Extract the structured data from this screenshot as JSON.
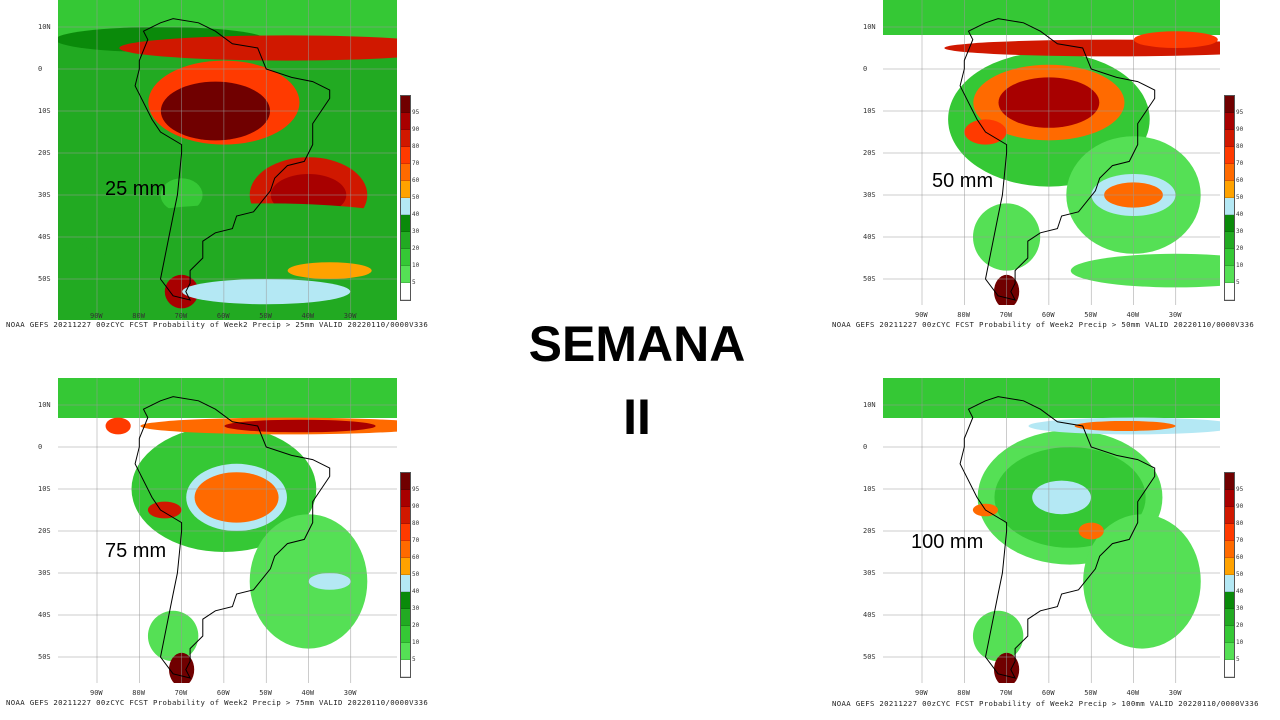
{
  "title": {
    "line1": "SEMANA",
    "line2": "II"
  },
  "lat_labels": [
    "10N",
    "0",
    "10S",
    "20S",
    "30S",
    "40S",
    "50S"
  ],
  "lon_labels": [
    "90W",
    "80W",
    "70W",
    "60W",
    "50W",
    "40W",
    "30W"
  ],
  "colorbar": {
    "labels": [
      "5",
      "10",
      "20",
      "30",
      "40",
      "50",
      "60",
      "70",
      "80",
      "90",
      "95"
    ],
    "colors": [
      "#ffffff",
      "#55e055",
      "#35c835",
      "#22aa22",
      "#0a8a0a",
      "#b4e8f4",
      "#ffa200",
      "#ff6a00",
      "#ff3a00",
      "#d01800",
      "#a80000",
      "#700000"
    ]
  },
  "panels": [
    {
      "threshold": "25 mm",
      "caption": "NOAA GEFS 20211227 00zCYC FCST Probability of Week2 Precip > 25mm  VALID 20220110/0000V336"
    },
    {
      "threshold": "50 mm",
      "caption": "NOAA GEFS 20211227 00zCYC FCST Probability of Week2 Precip > 50mm  VALID 20220110/0000V336"
    },
    {
      "threshold": "75 mm",
      "caption": "NOAA GEFS 20211227 00zCYC FCST Probability of Week2 Precip > 75mm  VALID 20220110/0000V336"
    },
    {
      "threshold": "100 mm",
      "caption": "NOAA GEFS 20211227 00zCYC FCST Probability of Week2 Precip > 100mm  VALID 20220110/0000V336"
    }
  ]
}
